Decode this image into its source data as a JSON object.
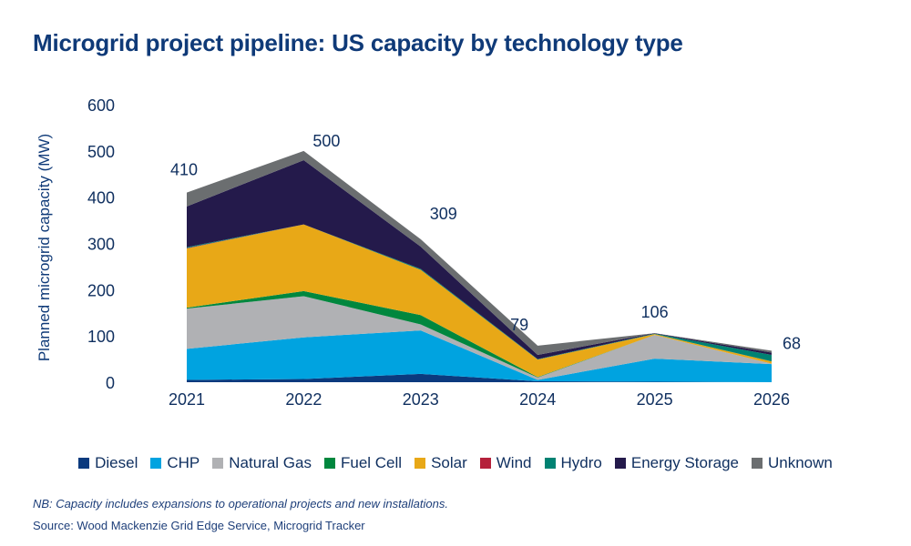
{
  "title": "Microgrid project pipeline: US capacity by technology type",
  "note": "NB: Capacity includes expansions to operational projects and new installations.",
  "source": "Source: Wood Mackenzie Grid Edge Service, Microgrid Tracker",
  "chart_data": {
    "type": "area",
    "stacked": true,
    "title": "Microgrid project pipeline: US capacity by technology type",
    "xlabel": "",
    "ylabel": "Planned microgrid capacity (MW)",
    "ylim": [
      0,
      600
    ],
    "yticks": [
      "0",
      "100",
      "200",
      "300",
      "400",
      "500",
      "600"
    ],
    "categories": [
      "2021",
      "2022",
      "2023",
      "2024",
      "2025",
      "2026"
    ],
    "totals": [
      "410",
      "500",
      "309",
      "79",
      "106",
      "68"
    ],
    "grid": false,
    "legend_position": "bottom",
    "series": [
      {
        "name": "Diesel",
        "color": "#0b3a7e",
        "values": [
          5,
          7,
          18,
          2,
          1,
          0
        ]
      },
      {
        "name": "CHP",
        "color": "#00a3e0",
        "values": [
          67,
          90,
          94,
          3,
          50,
          39
        ]
      },
      {
        "name": "Natural Gas",
        "color": "#b0b1b4",
        "values": [
          87,
          89,
          13,
          5,
          51,
          1
        ]
      },
      {
        "name": "Fuel Cell",
        "color": "#00873e",
        "values": [
          2,
          11,
          20,
          1,
          0,
          0
        ]
      },
      {
        "name": "Solar",
        "color": "#e8a817",
        "values": [
          128,
          144,
          98,
          38,
          2,
          5
        ]
      },
      {
        "name": "Wind",
        "color": "#b5213b",
        "values": [
          1,
          0,
          0,
          0,
          0,
          0
        ]
      },
      {
        "name": "Hydro",
        "color": "#008272",
        "values": [
          2,
          0,
          2,
          1,
          1,
          14
        ]
      },
      {
        "name": "Energy Storage",
        "color": "#241a4b",
        "values": [
          88,
          139,
          48,
          9,
          1,
          5
        ]
      },
      {
        "name": "Unknown",
        "color": "#6b6e70",
        "values": [
          30,
          20,
          16,
          20,
          0,
          4
        ]
      }
    ]
  }
}
